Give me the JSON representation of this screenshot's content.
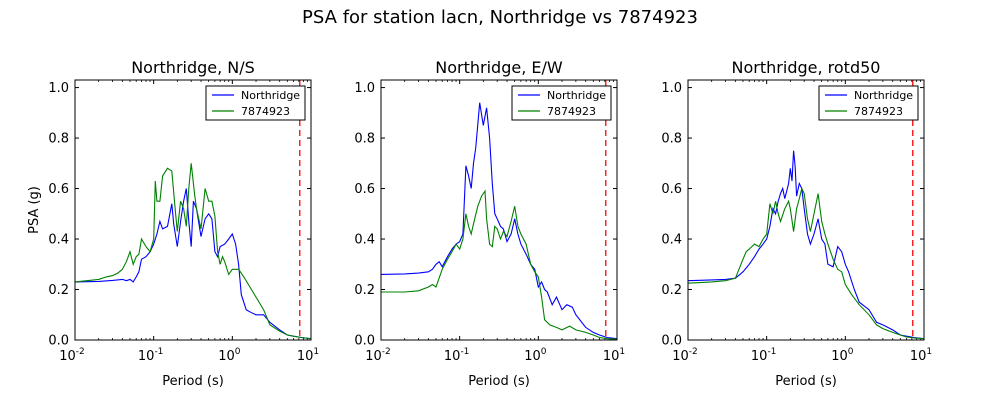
{
  "figure": {
    "title": "PSA for station lacn, Northridge vs 7874923"
  },
  "colors": {
    "northridge": "#0000ff",
    "synthetic": "#008000",
    "marker_line": "#ff0000"
  },
  "chart_data": [
    {
      "type": "line",
      "title": "Northridge, N/S",
      "xlabel": "Period (s)",
      "ylabel": "PSA (g)",
      "xscale": "log",
      "xlim": [
        0.01,
        10
      ],
      "ylim": [
        0,
        1.03
      ],
      "xticks": [
        "10^-2",
        "10^-1",
        "10^0",
        "10^1"
      ],
      "yticks": [
        "0.0",
        "0.2",
        "0.4",
        "0.6",
        "0.8",
        "1.0"
      ],
      "legend_position": "top-right",
      "vline_x": 7.2,
      "series": [
        {
          "name": "Northridge",
          "color": "#0000ff",
          "x": [
            0.01,
            0.02,
            0.03,
            0.04,
            0.045,
            0.05,
            0.055,
            0.06,
            0.065,
            0.07,
            0.08,
            0.09,
            0.1,
            0.11,
            0.12,
            0.13,
            0.15,
            0.17,
            0.18,
            0.2,
            0.22,
            0.24,
            0.26,
            0.28,
            0.3,
            0.32,
            0.35,
            0.4,
            0.45,
            0.5,
            0.55,
            0.6,
            0.65,
            0.7,
            0.8,
            0.9,
            1.0,
            1.1,
            1.2,
            1.3,
            1.5,
            1.7,
            2.0,
            2.5,
            3.0,
            4.0,
            5.0,
            6.0,
            7.5,
            10.0
          ],
          "y": [
            0.23,
            0.232,
            0.236,
            0.24,
            0.235,
            0.24,
            0.23,
            0.25,
            0.27,
            0.32,
            0.33,
            0.35,
            0.38,
            0.42,
            0.47,
            0.44,
            0.45,
            0.54,
            0.46,
            0.37,
            0.47,
            0.55,
            0.6,
            0.47,
            0.37,
            0.55,
            0.52,
            0.41,
            0.48,
            0.5,
            0.48,
            0.35,
            0.33,
            0.37,
            0.38,
            0.4,
            0.42,
            0.38,
            0.3,
            0.18,
            0.12,
            0.11,
            0.1,
            0.1,
            0.07,
            0.04,
            0.02,
            0.015,
            0.01,
            0.005
          ]
        },
        {
          "name": "7874923",
          "color": "#008000",
          "x": [
            0.01,
            0.02,
            0.025,
            0.03,
            0.035,
            0.04,
            0.045,
            0.05,
            0.055,
            0.06,
            0.065,
            0.07,
            0.08,
            0.09,
            0.1,
            0.105,
            0.11,
            0.12,
            0.13,
            0.15,
            0.17,
            0.19,
            0.2,
            0.22,
            0.24,
            0.26,
            0.28,
            0.3,
            0.33,
            0.35,
            0.4,
            0.45,
            0.5,
            0.55,
            0.6,
            0.65,
            0.7,
            0.75,
            0.8,
            0.9,
            1.0,
            1.2,
            1.4,
            1.6,
            2.0,
            2.5,
            3.0,
            4.0,
            5.0,
            6.0,
            7.5,
            10.0
          ],
          "y": [
            0.23,
            0.24,
            0.25,
            0.255,
            0.265,
            0.28,
            0.31,
            0.35,
            0.3,
            0.33,
            0.34,
            0.4,
            0.37,
            0.35,
            0.4,
            0.63,
            0.55,
            0.55,
            0.65,
            0.68,
            0.67,
            0.5,
            0.43,
            0.55,
            0.52,
            0.45,
            0.6,
            0.7,
            0.58,
            0.52,
            0.44,
            0.6,
            0.55,
            0.55,
            0.49,
            0.35,
            0.3,
            0.33,
            0.31,
            0.26,
            0.28,
            0.28,
            0.25,
            0.22,
            0.17,
            0.12,
            0.06,
            0.035,
            0.02,
            0.015,
            0.01,
            0.005
          ]
        }
      ]
    },
    {
      "type": "line",
      "title": "Northridge, E/W",
      "xlabel": "Period (s)",
      "ylabel": "",
      "xscale": "log",
      "xlim": [
        0.01,
        10
      ],
      "ylim": [
        0,
        1.03
      ],
      "xticks": [
        "10^-2",
        "10^-1",
        "10^0",
        "10^1"
      ],
      "yticks": [
        "0.0",
        "0.2",
        "0.4",
        "0.6",
        "0.8",
        "1.0"
      ],
      "legend_position": "top-right",
      "vline_x": 7.2,
      "series": [
        {
          "name": "Northridge",
          "color": "#0000ff",
          "x": [
            0.01,
            0.02,
            0.03,
            0.04,
            0.045,
            0.05,
            0.055,
            0.06,
            0.07,
            0.08,
            0.09,
            0.1,
            0.11,
            0.12,
            0.13,
            0.14,
            0.15,
            0.16,
            0.18,
            0.2,
            0.22,
            0.24,
            0.26,
            0.28,
            0.3,
            0.33,
            0.36,
            0.4,
            0.45,
            0.5,
            0.55,
            0.6,
            0.7,
            0.8,
            0.9,
            1.0,
            1.1,
            1.2,
            1.3,
            1.5,
            1.7,
            2.0,
            2.3,
            2.7,
            3.0,
            4.0,
            5.0,
            6.0,
            7.5,
            10.0
          ],
          "y": [
            0.26,
            0.262,
            0.265,
            0.27,
            0.28,
            0.3,
            0.31,
            0.29,
            0.33,
            0.36,
            0.38,
            0.39,
            0.42,
            0.69,
            0.65,
            0.6,
            0.7,
            0.76,
            0.94,
            0.85,
            0.92,
            0.8,
            0.62,
            0.5,
            0.48,
            0.45,
            0.44,
            0.39,
            0.42,
            0.48,
            0.42,
            0.38,
            0.34,
            0.3,
            0.28,
            0.21,
            0.23,
            0.2,
            0.19,
            0.14,
            0.17,
            0.12,
            0.14,
            0.13,
            0.1,
            0.05,
            0.03,
            0.02,
            0.01,
            0.005
          ]
        },
        {
          "name": "7874923",
          "color": "#008000",
          "x": [
            0.01,
            0.02,
            0.03,
            0.04,
            0.045,
            0.05,
            0.06,
            0.07,
            0.08,
            0.09,
            0.1,
            0.11,
            0.12,
            0.13,
            0.14,
            0.15,
            0.17,
            0.19,
            0.21,
            0.22,
            0.24,
            0.26,
            0.28,
            0.3,
            0.33,
            0.36,
            0.4,
            0.45,
            0.5,
            0.55,
            0.6,
            0.7,
            0.8,
            0.9,
            1.0,
            1.1,
            1.2,
            1.4,
            1.7,
            2.0,
            2.5,
            3.0,
            4.0,
            5.0,
            6.0,
            7.5,
            10.0
          ],
          "y": [
            0.19,
            0.19,
            0.195,
            0.21,
            0.22,
            0.21,
            0.28,
            0.32,
            0.35,
            0.38,
            0.36,
            0.4,
            0.5,
            0.45,
            0.42,
            0.46,
            0.53,
            0.57,
            0.59,
            0.48,
            0.38,
            0.37,
            0.45,
            0.44,
            0.4,
            0.43,
            0.41,
            0.47,
            0.53,
            0.45,
            0.42,
            0.38,
            0.3,
            0.27,
            0.25,
            0.17,
            0.08,
            0.06,
            0.05,
            0.04,
            0.055,
            0.04,
            0.03,
            0.02,
            0.01,
            0.005,
            0.003
          ]
        }
      ]
    },
    {
      "type": "line",
      "title": "Northridge, rotd50",
      "xlabel": "Period (s)",
      "ylabel": "",
      "xscale": "log",
      "xlim": [
        0.01,
        10
      ],
      "ylim": [
        0,
        1.03
      ],
      "xticks": [
        "10^-2",
        "10^-1",
        "10^0",
        "10^1"
      ],
      "yticks": [
        "0.0",
        "0.2",
        "0.4",
        "0.6",
        "0.8",
        "1.0"
      ],
      "legend_position": "top-right",
      "vline_x": 7.2,
      "series": [
        {
          "name": "Northridge",
          "color": "#0000ff",
          "x": [
            0.01,
            0.02,
            0.03,
            0.04,
            0.05,
            0.06,
            0.07,
            0.08,
            0.09,
            0.1,
            0.11,
            0.12,
            0.13,
            0.14,
            0.15,
            0.16,
            0.17,
            0.19,
            0.2,
            0.21,
            0.22,
            0.23,
            0.24,
            0.26,
            0.28,
            0.3,
            0.33,
            0.36,
            0.4,
            0.45,
            0.5,
            0.55,
            0.6,
            0.7,
            0.8,
            0.9,
            1.0,
            1.1,
            1.3,
            1.5,
            2.0,
            2.5,
            3.0,
            4.0,
            5.0,
            6.0,
            7.5,
            10.0
          ],
          "y": [
            0.235,
            0.238,
            0.24,
            0.245,
            0.27,
            0.3,
            0.33,
            0.36,
            0.38,
            0.4,
            0.45,
            0.52,
            0.5,
            0.55,
            0.58,
            0.6,
            0.56,
            0.62,
            0.68,
            0.63,
            0.75,
            0.69,
            0.57,
            0.62,
            0.6,
            0.52,
            0.42,
            0.38,
            0.42,
            0.48,
            0.4,
            0.38,
            0.3,
            0.29,
            0.37,
            0.35,
            0.3,
            0.27,
            0.2,
            0.15,
            0.12,
            0.07,
            0.06,
            0.04,
            0.02,
            0.015,
            0.01,
            0.005
          ]
        },
        {
          "name": "7874923",
          "color": "#008000",
          "x": [
            0.01,
            0.02,
            0.03,
            0.04,
            0.05,
            0.055,
            0.06,
            0.07,
            0.08,
            0.09,
            0.1,
            0.11,
            0.12,
            0.13,
            0.14,
            0.15,
            0.17,
            0.19,
            0.2,
            0.22,
            0.24,
            0.26,
            0.28,
            0.3,
            0.33,
            0.36,
            0.4,
            0.45,
            0.5,
            0.55,
            0.6,
            0.7,
            0.8,
            0.9,
            1.0,
            1.2,
            1.5,
            2.0,
            2.5,
            3.0,
            4.0,
            5.0,
            6.0,
            7.5,
            10.0
          ],
          "y": [
            0.225,
            0.23,
            0.235,
            0.245,
            0.32,
            0.35,
            0.36,
            0.38,
            0.37,
            0.4,
            0.42,
            0.54,
            0.5,
            0.55,
            0.5,
            0.47,
            0.52,
            0.55,
            0.52,
            0.43,
            0.52,
            0.56,
            0.6,
            0.58,
            0.48,
            0.43,
            0.5,
            0.58,
            0.47,
            0.42,
            0.38,
            0.32,
            0.28,
            0.27,
            0.22,
            0.18,
            0.14,
            0.1,
            0.06,
            0.045,
            0.03,
            0.02,
            0.012,
            0.008,
            0.005
          ]
        }
      ]
    }
  ]
}
